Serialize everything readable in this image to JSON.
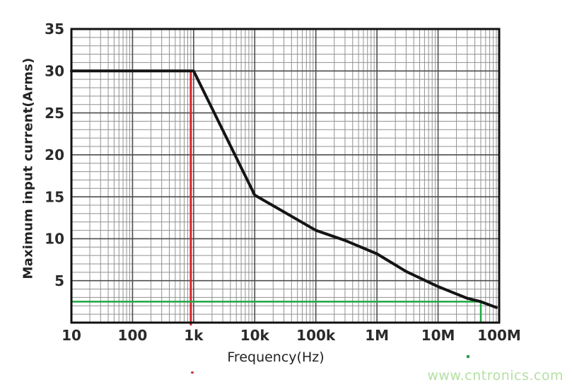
{
  "page": {
    "background": "#ffffff"
  },
  "chart_data": {
    "type": "line",
    "title": "",
    "xlabel": "Frequency(Hz)",
    "ylabel": "Maximum input current(Arms)",
    "x_scale": "log",
    "x_min": 10,
    "x_max": 100000000,
    "y_min": 0,
    "y_max": 35,
    "grid": {
      "show": true,
      "minor_color": "#919191",
      "major_color": "#4d4d4d"
    },
    "x_ticks": [
      {
        "value": 10,
        "label": "10"
      },
      {
        "value": 100,
        "label": "100"
      },
      {
        "value": 1000,
        "label": "1k"
      },
      {
        "value": 10000,
        "label": "10k"
      },
      {
        "value": 100000,
        "label": "100k"
      },
      {
        "value": 1000000,
        "label": "1M"
      },
      {
        "value": 10000000,
        "label": "10M"
      },
      {
        "value": 100000000,
        "label": "100M"
      }
    ],
    "y_ticks": [
      {
        "value": 5,
        "label": "5"
      },
      {
        "value": 10,
        "label": "10"
      },
      {
        "value": 15,
        "label": "15"
      },
      {
        "value": 20,
        "label": "20"
      },
      {
        "value": 25,
        "label": "25"
      },
      {
        "value": 30,
        "label": "30"
      },
      {
        "value": 35,
        "label": "35"
      }
    ],
    "series": [
      {
        "name": "maximum-input-current-curve",
        "color": "#141414",
        "width": 4,
        "points": [
          [
            10,
            30
          ],
          [
            1000,
            30
          ],
          [
            10000,
            15.2
          ],
          [
            30000,
            13.2
          ],
          [
            100000,
            11.0
          ],
          [
            300000,
            9.8
          ],
          [
            1000000,
            8.2
          ],
          [
            3000000,
            6.1
          ],
          [
            10000000,
            4.3
          ],
          [
            30000000,
            2.9
          ],
          [
            50000000,
            2.5
          ],
          [
            90000000,
            1.8
          ]
        ]
      }
    ],
    "annotations": [
      {
        "name": "red-reference-vline",
        "type": "vline",
        "x": 900,
        "y_from": 0,
        "y_to": 30,
        "color": "#d8232a",
        "width": 3
      },
      {
        "name": "green-reference-line",
        "type": "hline-with-corner-drop",
        "y": 2.5,
        "x_from": 10,
        "x_corner": 50000000,
        "color": "#1ea744",
        "width": 2.5
      }
    ]
  },
  "watermark": {
    "text": "www.cntronics.com",
    "color": "#b4e0a4"
  },
  "artifacts": {
    "red_dot_color": "#c22631",
    "green_dot_color": "#2f9e4a"
  }
}
